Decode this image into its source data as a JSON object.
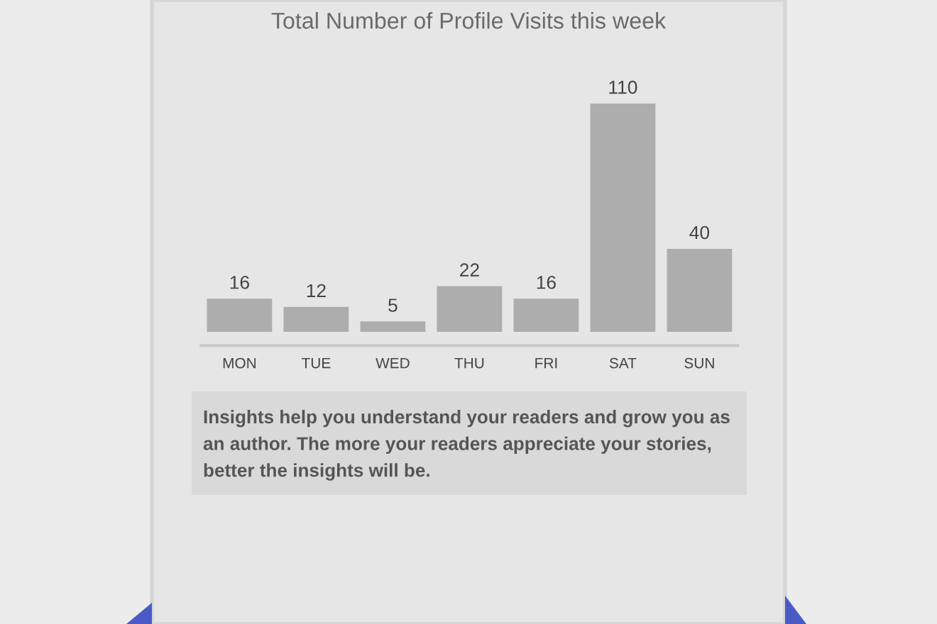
{
  "chart_data": {
    "type": "bar",
    "title": "Total Number of Profile Visits this week",
    "categories": [
      "MON",
      "TUE",
      "WED",
      "THU",
      "FRI",
      "SAT",
      "SUN"
    ],
    "values": [
      16,
      12,
      5,
      22,
      16,
      110,
      40
    ],
    "color": "#adadad",
    "data_labels": true,
    "annotations": [
      "Insights help you understand your readers and grow you as an author. The more your readers appreciate your stories, better the insights will be."
    ]
  }
}
